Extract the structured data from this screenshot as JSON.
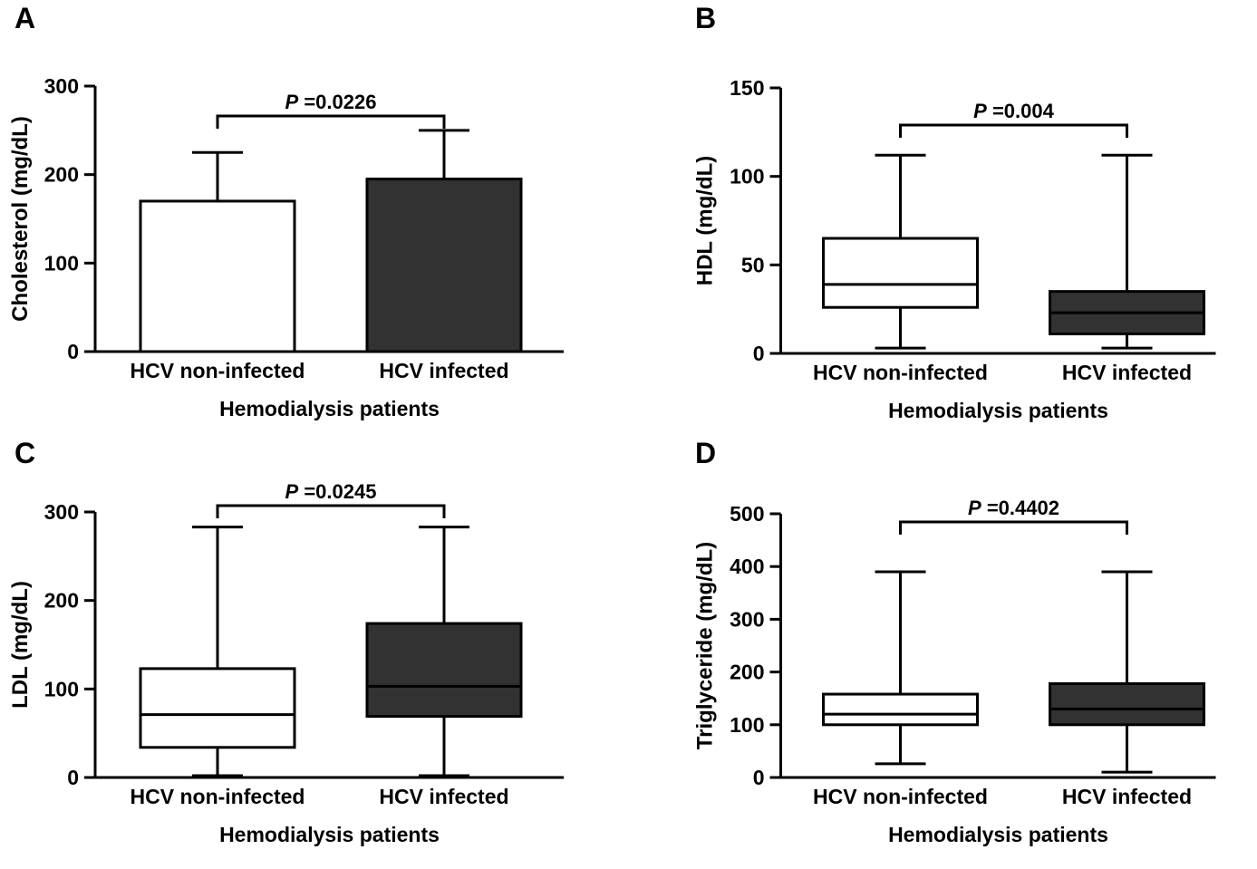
{
  "chart_data": [
    {
      "panel": "A",
      "type": "bar",
      "ylabel": "Cholesterol (mg/dL)",
      "xlabel": "Hemodialysis patients",
      "categories": [
        "HCV non-infected",
        "HCV infected"
      ],
      "values": [
        170,
        195
      ],
      "error_high": [
        225,
        250
      ],
      "ylim": [
        0,
        300
      ],
      "yticks": [
        0,
        100,
        200,
        300
      ],
      "p_label": "P =0.0226",
      "colors": [
        "#ffffff",
        "#323232"
      ]
    },
    {
      "panel": "B",
      "type": "box",
      "ylabel": "HDL (mg/dL)",
      "xlabel": "Hemodialysis patients",
      "categories": [
        "HCV non-infected",
        "HCV infected"
      ],
      "series": [
        {
          "name": "HCV non-infected",
          "min": 3,
          "q1": 26,
          "median": 39,
          "q3": 65,
          "max": 112
        },
        {
          "name": "HCV infected",
          "min": 3,
          "q1": 11,
          "median": 23,
          "q3": 35,
          "max": 112
        }
      ],
      "ylim": [
        0,
        150
      ],
      "yticks": [
        0,
        50,
        100,
        150
      ],
      "p_label": "P =0.004",
      "colors": [
        "#ffffff",
        "#323232"
      ]
    },
    {
      "panel": "C",
      "type": "box",
      "ylabel": "LDL (mg/dL)",
      "xlabel": "Hemodialysis patients",
      "categories": [
        "HCV non-infected",
        "HCV infected"
      ],
      "series": [
        {
          "name": "HCV non-infected",
          "min": 2,
          "q1": 34,
          "median": 71,
          "q3": 123,
          "max": 283
        },
        {
          "name": "HCV infected",
          "min": 2,
          "q1": 69,
          "median": 103,
          "q3": 174,
          "max": 283
        }
      ],
      "ylim": [
        0,
        300
      ],
      "yticks": [
        0,
        100,
        200,
        300
      ],
      "p_label": "P =0.0245",
      "colors": [
        "#ffffff",
        "#323232"
      ]
    },
    {
      "panel": "D",
      "type": "box",
      "ylabel": "Triglyceride (mg/dL)",
      "xlabel": "Hemodialysis patients",
      "categories": [
        "HCV non-infected",
        "HCV infected"
      ],
      "series": [
        {
          "name": "HCV non-infected",
          "min": 26,
          "q1": 100,
          "median": 120,
          "q3": 158,
          "max": 390
        },
        {
          "name": "HCV infected",
          "min": 10,
          "q1": 100,
          "median": 130,
          "q3": 178,
          "max": 390
        }
      ],
      "ylim": [
        0,
        500
      ],
      "yticks": [
        0,
        100,
        200,
        300,
        400,
        500
      ],
      "p_label": "P =0.4402",
      "colors": [
        "#ffffff",
        "#323232"
      ]
    }
  ]
}
